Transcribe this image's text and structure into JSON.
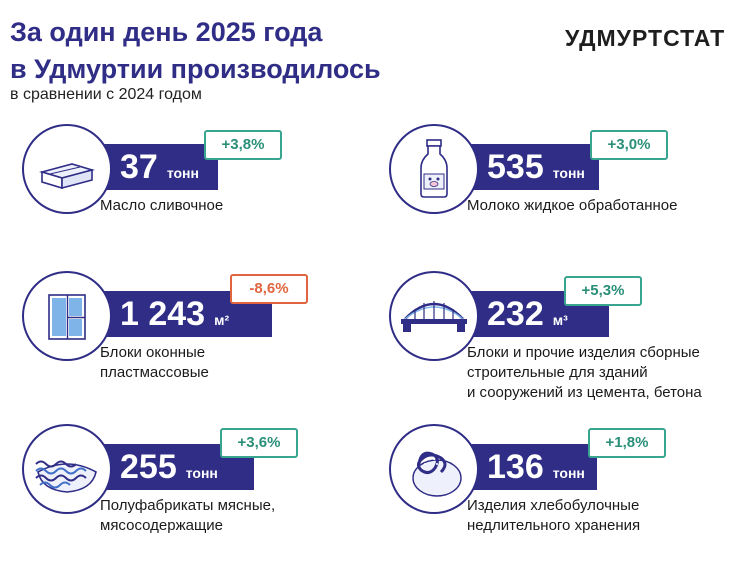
{
  "header": {
    "title_line1": "За один день 2025 года",
    "title_line2": "в Удмуртии производилось",
    "subtitle": "в сравнении с 2024 годом",
    "brand": "УДМУРТСТАТ"
  },
  "colors": {
    "primary": "#2f2d86",
    "positive": "#39a590",
    "negative": "#e0653f"
  },
  "items": [
    {
      "icon": "butter-icon",
      "value": "37",
      "unit": "тонн",
      "change": "+3,8%",
      "change_direction": "up",
      "label_lines": [
        "Масло сливочное"
      ]
    },
    {
      "icon": "milk-bottle-icon",
      "value": "535",
      "unit": "тонн",
      "change": "+3,0%",
      "change_direction": "up",
      "label_lines": [
        "Молоко жидкое обработанное"
      ]
    },
    {
      "icon": "window-icon",
      "value": "1 243",
      "unit": "м²",
      "change": "-8,6%",
      "change_direction": "down",
      "label_lines": [
        "Блоки оконные",
        "пластмассовые"
      ]
    },
    {
      "icon": "bridge-icon",
      "value": "232",
      "unit": "м³",
      "change": "+5,3%",
      "change_direction": "up",
      "label_lines": [
        "Блоки и прочие изделия сборные",
        "строительные для зданий",
        "и сооружений из цемента, бетона"
      ]
    },
    {
      "icon": "dumplings-icon",
      "value": "255",
      "unit": "тонн",
      "change": "+3,6%",
      "change_direction": "up",
      "label_lines": [
        "Полуфабрикаты мясные,",
        "мясосодержащие"
      ]
    },
    {
      "icon": "pretzel-icon",
      "value": "136",
      "unit": "тонн",
      "change": "+1,8%",
      "change_direction": "up",
      "label_lines": [
        "Изделия хлебобулочные",
        "недлительного хранения"
      ]
    }
  ]
}
